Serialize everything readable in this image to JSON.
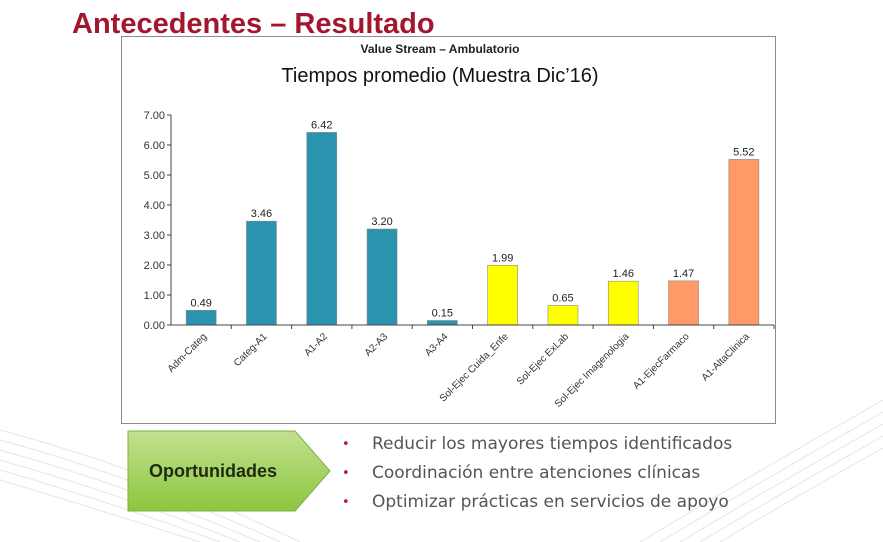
{
  "slide": {
    "title": "Antecedentes – Resultado",
    "opportunities_label": "Oportunidades",
    "bullets": [
      "Reducir los mayores tiempos identificados",
      "Coordinación entre atenciones clínicas",
      "Optimizar prácticas en servicios de apoyo"
    ],
    "colors": {
      "title": "#a3172e",
      "bullet": "#b0203a",
      "box_green": "#9ccf57"
    }
  },
  "chart_data": {
    "type": "bar",
    "supertitle": "Value Stream – Ambulatorio",
    "title": "Tiempos promedio (Muestra Dic’16)",
    "categories": [
      "Adm-Categ",
      "Categ-A1",
      "A1-A2",
      "A2-A3",
      "A3-A4",
      "Sol-Ejec Cuida_Enfe",
      "Sol-Ejec ExLab",
      "Sol-Ejec Imagenologia",
      "A1-EjecFarmaco",
      "A1-AltaClinica"
    ],
    "values": [
      0.49,
      3.46,
      6.42,
      3.2,
      0.15,
      1.99,
      0.65,
      1.46,
      1.47,
      5.52
    ],
    "data_labels": [
      "0.49",
      "3.46",
      "6.42",
      "3.20",
      "0.15",
      "1.99",
      "0.65",
      "1.46",
      "1.47",
      "5.52"
    ],
    "bar_colors": [
      "#2a93ad",
      "#2a93ad",
      "#2a93ad",
      "#2a93ad",
      "#2a93ad",
      "#ffff00",
      "#ffff00",
      "#ffff00",
      "#ff9966",
      "#ff9966"
    ],
    "ylim": [
      0,
      7
    ],
    "yticks": [
      "0.00",
      "1.00",
      "2.00",
      "3.00",
      "4.00",
      "5.00",
      "6.00",
      "7.00"
    ],
    "grid": false,
    "legend": "none"
  }
}
